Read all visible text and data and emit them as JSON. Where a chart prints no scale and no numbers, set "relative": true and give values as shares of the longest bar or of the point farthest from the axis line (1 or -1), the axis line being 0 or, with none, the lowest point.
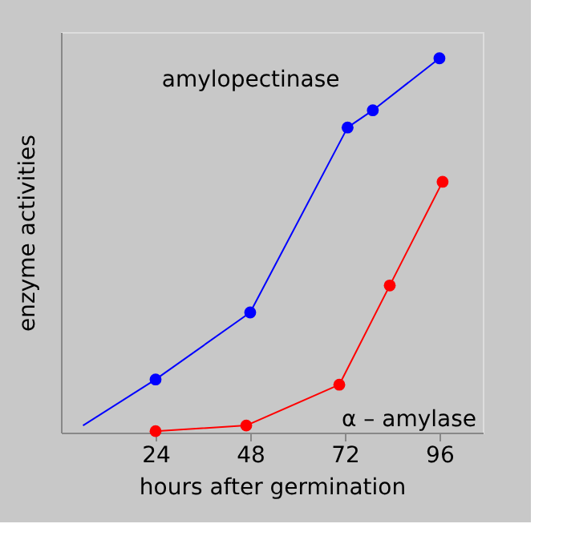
{
  "chart_data": {
    "type": "line",
    "xlabel": "hours after germination",
    "ylabel": "enzyme activities",
    "relative": true,
    "xlim": [
      0,
      107
    ],
    "xticks": [
      24,
      48,
      72,
      96
    ],
    "grid": false,
    "legend": false,
    "marker": "circle",
    "line_style": "solid",
    "series": [
      {
        "name": "amylopectinase",
        "color": "#0000ff",
        "x": [
          24,
          48,
          72.7,
          79.1,
          96
        ],
        "values": [
          0.142,
          0.321,
          0.815,
          0.861,
          1.0
        ]
      },
      {
        "name": "α – amylase",
        "color": "#ff0000",
        "x": [
          24,
          47,
          70.6,
          83.4,
          96.8
        ],
        "values": [
          0.004,
          0.019,
          0.128,
          0.393,
          0.67
        ]
      },
      {
        "type": "line",
        "color": "#0000ff",
        "marker": "none",
        "x": [
          5.6,
          24
        ],
        "values": [
          0.019,
          0.142
        ]
      }
    ]
  }
}
